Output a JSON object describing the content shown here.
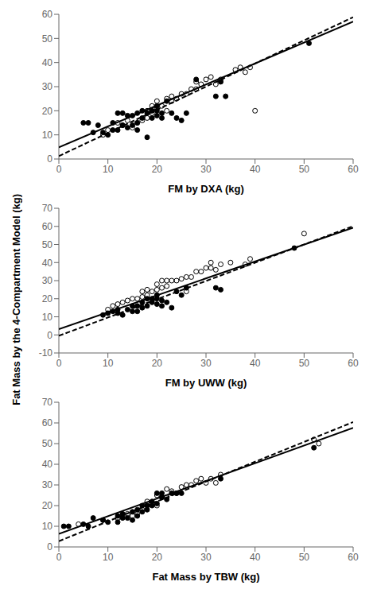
{
  "ylabel": "Fat Mass by the 4-Compartment Model (kg)",
  "chart_data": [
    {
      "type": "scatter",
      "x_label": "FM by DXA (kg)",
      "xlim": [
        0,
        60
      ],
      "ylim": [
        0,
        60
      ],
      "xticks": [
        0,
        10,
        20,
        30,
        40,
        50,
        60
      ],
      "yticks": [
        0,
        10,
        20,
        30,
        40,
        50,
        60
      ],
      "grid": false,
      "series": [
        {
          "type": "scatter",
          "marker": "circle",
          "color": "#000000",
          "x": [
            5,
            6,
            7,
            8,
            9,
            10,
            11,
            11,
            12,
            12,
            13,
            13,
            14,
            14,
            15,
            15,
            16,
            16,
            16,
            17,
            17,
            18,
            18,
            19,
            19,
            20,
            20,
            20,
            21,
            21,
            22,
            23,
            24,
            25,
            26,
            28,
            32,
            33,
            34,
            51
          ],
          "values": [
            15,
            15,
            11,
            14,
            11,
            10,
            12,
            15,
            12,
            19,
            14,
            19,
            13,
            18,
            14,
            18,
            12,
            15,
            19,
            17,
            20,
            9,
            19,
            17,
            20,
            18,
            20,
            22,
            17,
            19,
            24,
            19,
            17,
            16,
            19,
            33,
            26,
            32,
            26,
            48
          ]
        },
        {
          "type": "scatter",
          "marker": "open_circle",
          "color": "#000000",
          "x": [
            9,
            10,
            12,
            13,
            14,
            15,
            16,
            17,
            18,
            18,
            19,
            19,
            20,
            20,
            21,
            22,
            22,
            23,
            23,
            24,
            25,
            26,
            27,
            28,
            28,
            29,
            30,
            31,
            32,
            33,
            36,
            37,
            38,
            39,
            40
          ],
          "values": [
            10,
            12,
            15,
            14,
            16,
            13,
            15,
            16,
            17,
            20,
            19,
            22,
            21,
            24,
            22,
            20,
            25,
            24,
            26,
            25,
            27,
            27,
            29,
            29,
            32,
            31,
            33,
            34,
            31,
            33,
            37,
            38,
            36,
            38,
            20
          ]
        },
        {
          "type": "line",
          "line_style": "solid",
          "color": "#000000",
          "x": [
            0,
            60
          ],
          "values": [
            4.8,
            57.0
          ]
        },
        {
          "type": "line",
          "line_style": "dashed",
          "color": "#000000",
          "x": [
            0,
            60
          ],
          "values": [
            1.2,
            58.8
          ]
        }
      ]
    },
    {
      "type": "scatter",
      "x_label": "FM by UWW (kg)",
      "xlim": [
        0,
        60
      ],
      "ylim": [
        -10,
        70
      ],
      "xticks": [
        0,
        10,
        20,
        30,
        40,
        50,
        60
      ],
      "yticks": [
        -10,
        0,
        10,
        20,
        30,
        40,
        50,
        60,
        70
      ],
      "grid": false,
      "series": [
        {
          "type": "scatter",
          "marker": "circle",
          "color": "#000000",
          "x": [
            9,
            10,
            11,
            12,
            12,
            13,
            14,
            15,
            15,
            16,
            16,
            17,
            17,
            18,
            18,
            19,
            19,
            20,
            20,
            20,
            21,
            21,
            22,
            23,
            24,
            25,
            26,
            32,
            33,
            48
          ],
          "values": [
            11,
            12,
            13,
            12,
            14,
            11,
            14,
            13,
            16,
            13,
            16,
            15,
            18,
            16,
            20,
            18,
            20,
            17,
            20,
            22,
            16,
            19,
            18,
            15,
            24,
            22,
            26,
            26,
            25,
            48
          ]
        },
        {
          "type": "scatter",
          "marker": "open_circle",
          "color": "#000000",
          "x": [
            10,
            11,
            12,
            13,
            14,
            15,
            16,
            17,
            17,
            18,
            18,
            19,
            20,
            20,
            21,
            21,
            22,
            22,
            23,
            24,
            25,
            26,
            26,
            27,
            28,
            29,
            30,
            31,
            31,
            32,
            33,
            35,
            38,
            39,
            50
          ],
          "values": [
            14,
            16,
            17,
            18,
            19,
            20,
            20,
            21,
            24,
            22,
            25,
            24,
            25,
            28,
            26,
            30,
            27,
            30,
            30,
            30,
            31,
            32,
            24,
            32,
            35,
            35,
            37,
            37,
            40,
            36,
            39,
            40,
            39,
            42,
            56
          ]
        },
        {
          "type": "line",
          "line_style": "solid",
          "color": "#000000",
          "x": [
            0,
            60
          ],
          "values": [
            3.2,
            59.3
          ]
        },
        {
          "type": "line",
          "line_style": "dashed",
          "color": "#000000",
          "x": [
            0,
            60
          ],
          "values": [
            -0.5,
            60.1
          ]
        }
      ]
    },
    {
      "type": "scatter",
      "x_label": "Fat Mass by TBW (kg)",
      "xlim": [
        0,
        60
      ],
      "ylim": [
        0,
        70
      ],
      "xticks": [
        0,
        10,
        20,
        30,
        40,
        50,
        60
      ],
      "yticks": [
        0,
        10,
        20,
        30,
        40,
        50,
        60,
        70
      ],
      "grid": false,
      "series": [
        {
          "type": "scatter",
          "marker": "circle",
          "color": "#000000",
          "x": [
            1,
            2,
            5,
            6,
            7,
            9,
            10,
            12,
            12,
            13,
            13,
            14,
            15,
            15,
            16,
            16,
            17,
            17,
            18,
            18,
            19,
            19,
            20,
            20,
            21,
            21,
            22,
            23,
            24,
            25,
            33,
            52
          ],
          "values": [
            10,
            10,
            11,
            10,
            14,
            13,
            12,
            12,
            15,
            14,
            16,
            14,
            13,
            17,
            15,
            18,
            17,
            20,
            18,
            20,
            20,
            22,
            21,
            26,
            24,
            26,
            23,
            26,
            26,
            26,
            33,
            48
          ]
        },
        {
          "type": "scatter",
          "marker": "open_circle",
          "color": "#000000",
          "x": [
            4,
            9,
            12,
            13,
            14,
            15,
            16,
            17,
            18,
            18,
            19,
            20,
            20,
            21,
            22,
            22,
            23,
            24,
            25,
            26,
            27,
            28,
            29,
            30,
            31,
            32,
            33,
            52,
            53
          ],
          "values": [
            11,
            13,
            14,
            15,
            16,
            15,
            16,
            18,
            20,
            22,
            21,
            20,
            25,
            24,
            24,
            28,
            27,
            26,
            29,
            30,
            30,
            32,
            33,
            31,
            33,
            31,
            35,
            52,
            50
          ]
        },
        {
          "type": "line",
          "line_style": "solid",
          "color": "#000000",
          "x": [
            0,
            60
          ],
          "values": [
            6.3,
            57.6
          ]
        },
        {
          "type": "line",
          "line_style": "dashed",
          "color": "#000000",
          "x": [
            0,
            60
          ],
          "values": [
            2.8,
            60.4
          ]
        }
      ]
    }
  ]
}
